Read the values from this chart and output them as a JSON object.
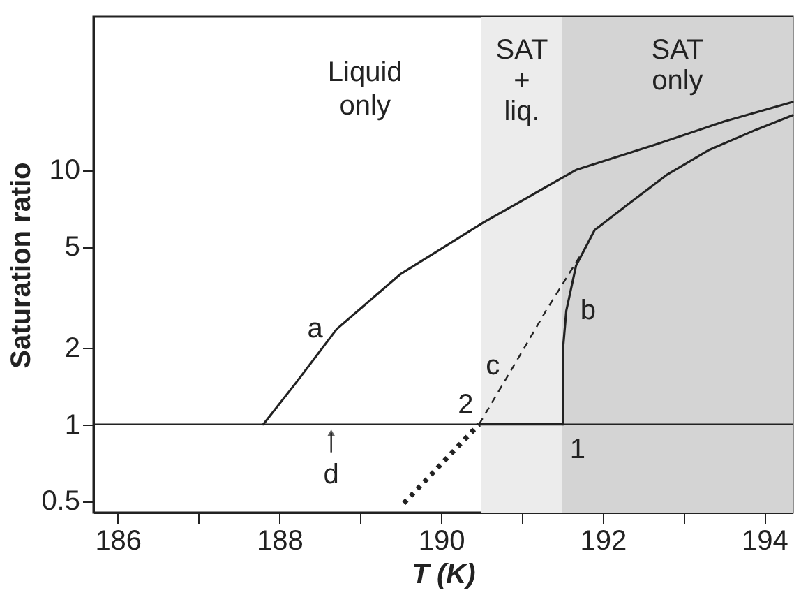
{
  "chart_data": {
    "type": "line",
    "xlabel": "T (K)",
    "ylabel": "Saturation ratio",
    "xlim": [
      185.7,
      194.35
    ],
    "ylim": [
      0.45,
      40
    ],
    "log": "y",
    "grid": false,
    "xticks": [
      186,
      {
        "value": 187,
        "label": null
      },
      188,
      {
        "value": 189,
        "label": null
      },
      190,
      {
        "value": 191,
        "label": null
      },
      192,
      {
        "value": 193,
        "label": null
      },
      194
    ],
    "yticks": [
      0.5,
      1,
      2,
      5,
      10
    ],
    "series": [
      {
        "name": "a",
        "color": "#222222",
        "line_style": "solid",
        "x": [
          187.8,
          188.2,
          188.71,
          189.5,
          190.52,
          191.67,
          192.66,
          193.5,
          194.35
        ],
        "values": [
          1,
          1.45,
          2.37,
          3.9,
          6.2,
          10,
          12.6,
          15.5,
          18.5
        ]
      },
      {
        "name": "b",
        "color": "#222222",
        "line_style": "solid",
        "x": [
          191.51,
          191.51,
          191.55,
          191.67,
          191.9,
          192.33,
          192.8,
          193.32,
          193.9,
          194.35
        ],
        "values": [
          1,
          2,
          2.8,
          4.2,
          5.8,
          7.4,
          9.6,
          12,
          14.4,
          16.4
        ]
      },
      {
        "name": "c",
        "color": "#222222",
        "line_style": "dashed",
        "x": [
          190.47,
          190.9,
          191.3,
          191.81
        ],
        "values": [
          1,
          1.7,
          2.8,
          5.1
        ]
      },
      {
        "color": "#222222",
        "line_style": "dotted",
        "x": [
          189.54,
          190.47
        ],
        "values": [
          0.49,
          1
        ]
      },
      {
        "color": "#222222",
        "line_style": "solid",
        "x": [
          190.47,
          191.51
        ],
        "values": [
          1,
          1
        ]
      }
    ],
    "ref_lines": [
      {
        "axis": "y",
        "value": 1,
        "label": "d",
        "color": "#222222"
      }
    ],
    "bands": [
      {
        "axis": "x",
        "from": 190.5,
        "to": 191.5,
        "label": "SAT\n+\nliq.",
        "color": "#ececec"
      },
      {
        "axis": "x",
        "from": 191.5,
        "to": 194.35,
        "label": "SAT\nonly",
        "color": "#d4d4d4"
      }
    ],
    "annotations": [
      "Liquid\nonly",
      {
        "text": "1",
        "x": 191.51,
        "y": 1
      },
      {
        "text": "2",
        "x": 190.47,
        "y": 1
      }
    ]
  }
}
